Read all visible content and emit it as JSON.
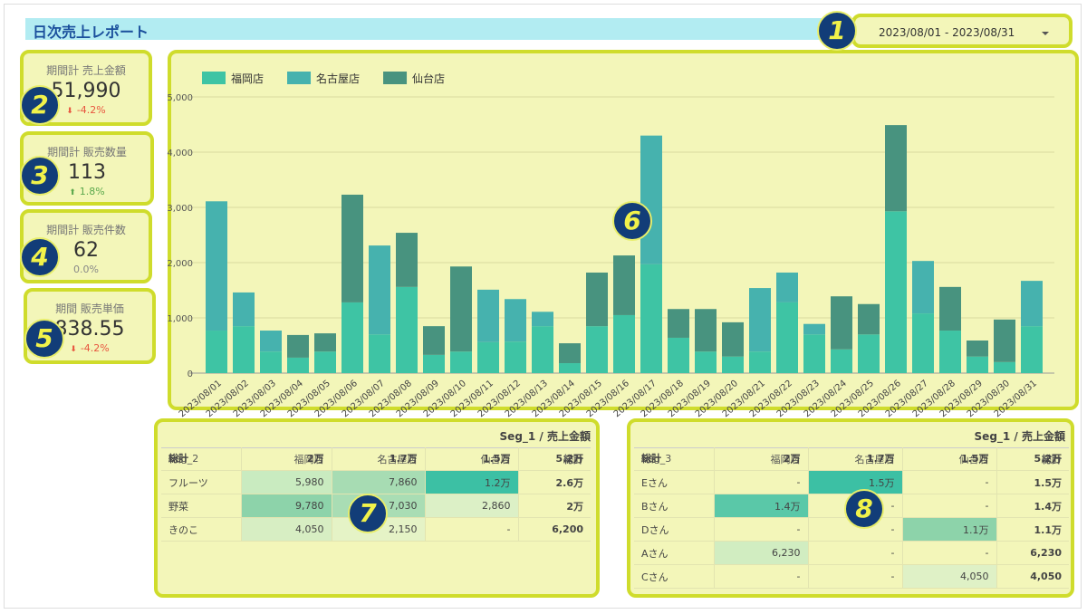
{
  "header": {
    "title": "日次売上レポート",
    "date_range": "2023/08/01 - 2023/08/31"
  },
  "kpis": [
    {
      "title": "期間計 売上金額",
      "value": "51,990",
      "change": "-4.2%"
    },
    {
      "title": "期間計 販売数量",
      "value": "113",
      "change": "1.8%"
    },
    {
      "title": "期間計 販売件数",
      "value": "62",
      "change": "0.0%"
    },
    {
      "title": "期間 販売単価",
      "value": "838.55",
      "change": "-4.2%"
    }
  ],
  "callouts": [
    "1",
    "2",
    "3",
    "4",
    "5",
    "6",
    "7",
    "8"
  ],
  "chart_data": {
    "type": "stacked_bar",
    "categories": [
      "2023/08/01",
      "2023/08/02",
      "2023/08/03",
      "2023/08/04",
      "2023/08/05",
      "2023/08/06",
      "2023/08/07",
      "2023/08/08",
      "2023/08/09",
      "2023/08/10",
      "2023/08/11",
      "2023/08/12",
      "2023/08/13",
      "2023/08/14",
      "2023/08/15",
      "2023/08/16",
      "2023/08/17",
      "2023/08/18",
      "2023/08/19",
      "2023/08/20",
      "2023/08/21",
      "2023/08/22",
      "2023/08/23",
      "2023/08/24",
      "2023/08/25",
      "2023/08/26",
      "2023/08/27",
      "2023/08/28",
      "2023/08/29",
      "2023/08/30",
      "2023/08/31"
    ],
    "series": [
      {
        "name": "福岡店",
        "color": "#3ec4a4",
        "values": [
          770,
          850,
          390,
          280,
          390,
          1280,
          700,
          1560,
          330,
          390,
          560,
          570,
          850,
          180,
          850,
          1050,
          1970,
          640,
          390,
          300,
          390,
          1280,
          700,
          430,
          700,
          2930,
          1080,
          770,
          300,
          200,
          850
        ]
      },
      {
        "name": "名古屋店",
        "color": "#46b2ae",
        "values": [
          2340,
          610,
          380,
          0,
          0,
          0,
          1610,
          0,
          0,
          0,
          950,
          770,
          260,
          0,
          0,
          0,
          2330,
          0,
          0,
          0,
          1150,
          540,
          190,
          0,
          0,
          0,
          950,
          0,
          0,
          0,
          820
        ]
      },
      {
        "name": "仙台店",
        "color": "#48937f",
        "values": [
          0,
          0,
          0,
          410,
          330,
          1950,
          0,
          980,
          520,
          1540,
          0,
          0,
          0,
          360,
          970,
          1080,
          0,
          520,
          770,
          620,
          0,
          0,
          0,
          960,
          550,
          1560,
          0,
          790,
          290,
          770,
          0
        ]
      }
    ],
    "ylim": [
      0,
      5000
    ],
    "yticks": [
      0,
      {
        "value": 1000,
        "label": "1,000"
      },
      {
        "value": 2000,
        "label": "2,000"
      },
      {
        "value": 3000,
        "label": "3,000"
      },
      {
        "value": 4000,
        "label": "4,000"
      },
      {
        "value": 5000,
        "label": "5,000"
      }
    ],
    "grid": true,
    "legend": "top-left"
  },
  "tables": [
    {
      "title": "Seg_1 / 売上金額",
      "columns": [
        "Seg_2",
        "福岡店",
        "名古屋店",
        "仙台店",
        "総計"
      ],
      "rows": [
        [
          "フルーツ",
          "5,980",
          "7,860",
          "1.2万",
          "2.6万"
        ],
        [
          "野菜",
          "9,780",
          "7,030",
          "2,860",
          "2万"
        ],
        [
          "きのこ",
          "4,050",
          "2,150",
          "-",
          "6,200"
        ]
      ],
      "cell_colors": [
        [
          null,
          "#c9ebc0",
          "#a7dcb3",
          "#3cc0a4",
          null
        ],
        [
          null,
          "#8dd3aa",
          "#a9ddb4",
          "#dcf0c6",
          null
        ],
        [
          null,
          "#d7eec3",
          "#e5f3c6",
          null,
          null
        ]
      ],
      "totals": [
        "総計",
        "2万",
        "1.7万",
        "1.5万",
        "5.2万"
      ]
    },
    {
      "title": "Seg_1 / 売上金額",
      "columns": [
        "Seg_3",
        "福岡店",
        "名古屋店",
        "仙台店",
        "総計"
      ],
      "rows": [
        [
          "Eさん",
          "-",
          "1.5万",
          "-",
          "1.5万"
        ],
        [
          "Bさん",
          "1.4万",
          "-",
          "-",
          "1.4万"
        ],
        [
          "Dさん",
          "-",
          "-",
          "1.1万",
          "1.1万"
        ],
        [
          "Aさん",
          "6,230",
          "-",
          "-",
          "6,230"
        ],
        [
          "Cさん",
          "-",
          "-",
          "4,050",
          "4,050"
        ]
      ],
      "cell_colors": [
        [
          null,
          null,
          "#3cc0a4",
          null,
          null
        ],
        [
          null,
          "#5ac8a8",
          null,
          null,
          null
        ],
        [
          null,
          null,
          null,
          "#8dd3aa",
          null
        ],
        [
          null,
          "#d1edc1",
          null,
          null,
          null
        ],
        [
          null,
          null,
          null,
          "#dff1c6",
          null
        ]
      ],
      "totals": [
        "総計",
        "2万",
        "1.7万",
        "1.5万",
        "5.2万"
      ]
    }
  ]
}
